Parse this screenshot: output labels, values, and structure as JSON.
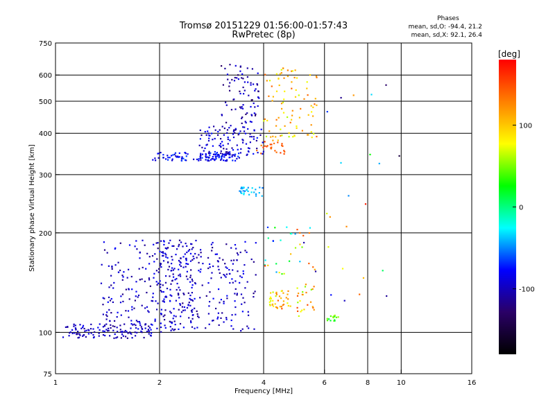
{
  "chart_data": {
    "type": "scatter",
    "title": "Tromsø 20151229 01:56:00-01:57:43",
    "subtitle": "RwPretec (8p)",
    "xlabel": "Frequency [MHz]",
    "ylabel": "Stationary phase Virtual Height [km]",
    "x_scale": "log",
    "y_scale": "log",
    "xlim": [
      1,
      16
    ],
    "ylim": [
      75,
      750
    ],
    "x_ticks": [
      1,
      2,
      4,
      6,
      8,
      10,
      16
    ],
    "x_tick_labels": [
      "1",
      "2",
      "4",
      "6",
      "8",
      "10",
      "16"
    ],
    "y_ticks": [
      75,
      100,
      200,
      300,
      400,
      500,
      600,
      750
    ],
    "y_tick_labels": [
      "75",
      "100",
      "200",
      "300",
      "400",
      "500",
      "600",
      "750"
    ],
    "grid_x": [
      2,
      4,
      6,
      8,
      10
    ],
    "grid_y": [
      100,
      200,
      300,
      400,
      500,
      600
    ],
    "grid": true,
    "phase_note": {
      "heading": "Phases",
      "line1": "mean, sd,O: -94.4, 21.2",
      "line2": "mean, sd,X:  92.1, 26.4"
    },
    "colorbar": {
      "label": "[deg]",
      "range": [
        -180,
        180
      ],
      "ticks": [
        100,
        0,
        -100
      ],
      "tick_labels": [
        "100",
        "0",
        "-100"
      ],
      "colors": [
        "#ff0000",
        "#ff8000",
        "#ffff00",
        "#00ff00",
        "#00ffff",
        "#0000ff",
        "#2a0066",
        "#000000"
      ]
    },
    "point_groups": [
      {
        "f_range": [
          1.05,
          1.9
        ],
        "h_range": [
          96,
          106
        ],
        "count": 110,
        "phase": [
          -115,
          -80
        ]
      },
      {
        "f_range": [
          1.35,
          2.6
        ],
        "h_range": [
          100,
          190
        ],
        "count": 260,
        "phase": [
          -120,
          -75
        ]
      },
      {
        "f_range": [
          2.0,
          3.8
        ],
        "h_range": [
          100,
          190
        ],
        "count": 230,
        "phase": [
          -120,
          -75
        ]
      },
      {
        "f_range": [
          1.9,
          3.4
        ],
        "h_range": [
          330,
          350
        ],
        "count": 110,
        "phase": [
          -100,
          -60
        ]
      },
      {
        "f_range": [
          2.6,
          4.0
        ],
        "h_range": [
          340,
          420
        ],
        "count": 110,
        "phase": [
          -120,
          -70
        ]
      },
      {
        "f_range": [
          3.0,
          3.9
        ],
        "h_range": [
          400,
          650
        ],
        "count": 90,
        "phase": [
          -130,
          -80
        ]
      },
      {
        "f_range": [
          4.0,
          5.7
        ],
        "h_range": [
          380,
          630
        ],
        "count": 90,
        "phase": [
          60,
          140
        ]
      },
      {
        "f_range": [
          3.8,
          4.6
        ],
        "h_range": [
          345,
          380
        ],
        "count": 25,
        "phase": [
          130,
          160
        ]
      },
      {
        "f_range": [
          3.4,
          4.0
        ],
        "h_range": [
          258,
          275
        ],
        "count": 30,
        "phase": [
          -55,
          -25
        ]
      },
      {
        "f_range": [
          4.1,
          4.8
        ],
        "h_range": [
          118,
          135
        ],
        "count": 40,
        "phase": [
          60,
          150
        ]
      },
      {
        "f_range": [
          5.0,
          5.6
        ],
        "h_range": [
          112,
          140
        ],
        "count": 25,
        "phase": [
          50,
          150
        ]
      },
      {
        "f_range": [
          6.1,
          6.6
        ],
        "h_range": [
          108,
          113
        ],
        "count": 15,
        "phase": [
          0,
          70
        ]
      },
      {
        "f_range": [
          4.0,
          5.8
        ],
        "h_range": [
          150,
          210
        ],
        "count": 35,
        "phase": [
          -110,
          160
        ]
      },
      {
        "f_range": [
          6.0,
          10.5
        ],
        "h_range": [
          105,
          560
        ],
        "count": 22,
        "phase": [
          -150,
          170
        ]
      }
    ]
  }
}
